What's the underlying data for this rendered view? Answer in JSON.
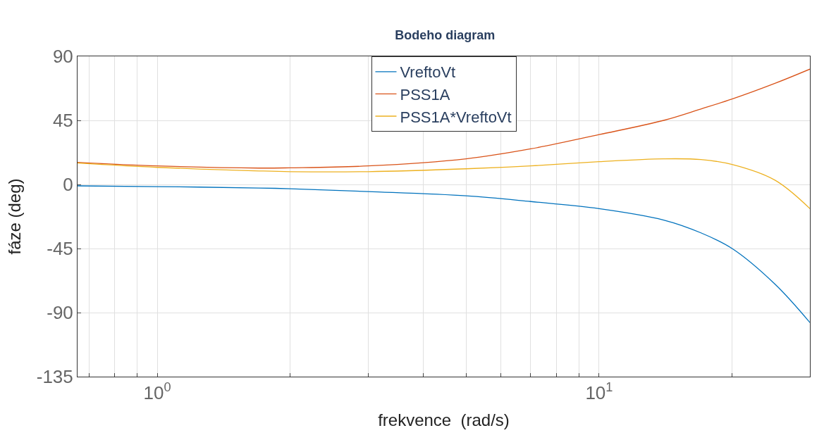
{
  "chart_data": {
    "type": "line",
    "title": "Bodeho diagram",
    "xlabel": "frekvence  (rad/s)",
    "ylabel": "fáze (deg)",
    "log": "x",
    "grid": true,
    "legend": "top",
    "marker": "none",
    "line_style": "solid",
    "xlim": [
      0.66,
      30
    ],
    "ylim": [
      -135,
      90
    ],
    "xticks": [
      {
        "value": 0.7,
        "label": null
      },
      {
        "value": 0.8,
        "label": null
      },
      {
        "value": 0.9,
        "label": null
      },
      {
        "value": 1,
        "label": "10$^{0}$"
      },
      {
        "value": 2,
        "label": null
      },
      {
        "value": 3,
        "label": null
      },
      {
        "value": 4,
        "label": null
      },
      {
        "value": 5,
        "label": null
      },
      {
        "value": 6,
        "label": null
      },
      {
        "value": 7,
        "label": null
      },
      {
        "value": 8,
        "label": null
      },
      {
        "value": 9,
        "label": null
      },
      {
        "value": 10,
        "label": "10$^{1}$"
      },
      {
        "value": 20,
        "label": null
      },
      {
        "value": 30,
        "label": null
      }
    ],
    "yticks": [
      -135,
      -90,
      -45,
      0,
      45,
      90
    ],
    "x": [
      0.66,
      1,
      1.7,
      2,
      3,
      5,
      7,
      10,
      14,
      17,
      20,
      25,
      30
    ],
    "series": [
      {
        "name": "VreftoVt",
        "color": "#0072bd",
        "values": [
          -1,
          -1.5,
          -2.5,
          -3,
          -5,
          -8,
          -12,
          -17,
          -25,
          -34,
          -45,
          -70,
          -97
        ]
      },
      {
        "name": "PSS1A",
        "color": "#d95319",
        "values": [
          15.5,
          13,
          11.5,
          11.7,
          13,
          18,
          25,
          35,
          45,
          53,
          60,
          71,
          81
        ]
      },
      {
        "name": "PSS1A*VreftoVt",
        "color": "#edb120",
        "values": [
          15,
          12,
          9.5,
          9,
          9,
          11,
          13,
          16,
          18,
          17.5,
          14,
          3,
          -17
        ]
      }
    ]
  }
}
